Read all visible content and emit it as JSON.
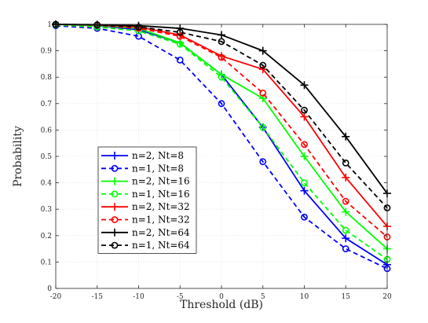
{
  "chart_data": {
    "type": "line",
    "title": "",
    "xlabel": "Threshold (dB)",
    "ylabel": "Probability",
    "xlim": [
      -20,
      20
    ],
    "ylim": [
      0,
      1
    ],
    "x": [
      -20,
      -15,
      -10,
      -5,
      0,
      5,
      10,
      15,
      20
    ],
    "x_ticks": [
      "-20",
      "-15",
      "-10",
      "-5",
      "0",
      "5",
      "10",
      "15",
      "20"
    ],
    "y_ticks": [
      "0",
      "0.1",
      "0.2",
      "0.3",
      "0.4",
      "0.5",
      "0.6",
      "0.7",
      "0.8",
      "0.9",
      "1"
    ],
    "grid": true,
    "legend_position": "lower-left",
    "series": [
      {
        "name": "n=2, Nt=8",
        "color": "#0000ff",
        "dash": "solid",
        "marker": "plus",
        "values": [
          1.0,
          0.995,
          0.98,
          0.93,
          0.81,
          0.61,
          0.37,
          0.19,
          0.09
        ]
      },
      {
        "name": "n=1, Nt=8",
        "color": "#0000ff",
        "dash": "dashed",
        "marker": "circle",
        "values": [
          0.995,
          0.985,
          0.955,
          0.865,
          0.7,
          0.48,
          0.27,
          0.15,
          0.075
        ]
      },
      {
        "name": "n=2, Nt=16",
        "color": "#00ff00",
        "dash": "solid",
        "marker": "plus",
        "values": [
          1.0,
          0.996,
          0.985,
          0.93,
          0.81,
          0.72,
          0.5,
          0.29,
          0.15
        ]
      },
      {
        "name": "n=1, Nt=16",
        "color": "#00ff00",
        "dash": "dashed",
        "marker": "circle",
        "values": [
          0.998,
          0.99,
          0.975,
          0.925,
          0.8,
          0.61,
          0.4,
          0.22,
          0.11
        ]
      },
      {
        "name": "n=2, Nt=32",
        "color": "#ff0000",
        "dash": "solid",
        "marker": "plus",
        "values": [
          1.0,
          0.998,
          0.99,
          0.96,
          0.88,
          0.83,
          0.65,
          0.42,
          0.235
        ]
      },
      {
        "name": "n=1, Nt=32",
        "color": "#ff0000",
        "dash": "dashed",
        "marker": "circle",
        "values": [
          1.0,
          0.997,
          0.985,
          0.955,
          0.875,
          0.74,
          0.545,
          0.33,
          0.195
        ]
      },
      {
        "name": "n=2, Nt=64",
        "color": "#000000",
        "dash": "solid",
        "marker": "plus",
        "values": [
          1.0,
          0.999,
          0.995,
          0.985,
          0.96,
          0.9,
          0.77,
          0.575,
          0.36
        ]
      },
      {
        "name": "n=1, Nt=64",
        "color": "#000000",
        "dash": "dashed",
        "marker": "circle",
        "values": [
          1.0,
          0.998,
          0.99,
          0.97,
          0.935,
          0.845,
          0.675,
          0.475,
          0.305
        ]
      }
    ]
  }
}
